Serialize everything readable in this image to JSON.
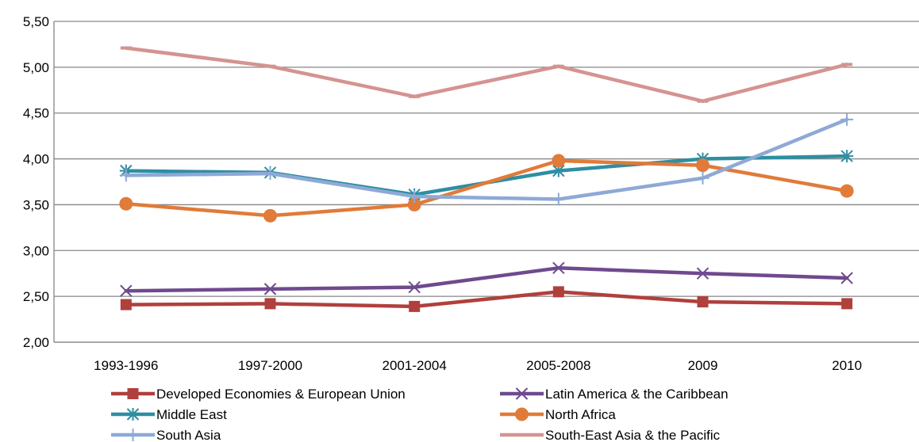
{
  "chart_data": {
    "type": "line",
    "title": "",
    "xlabel": "",
    "ylabel": "",
    "categories": [
      "1993-1996",
      "1997-2000",
      "2001-2004",
      "2005-2008",
      "2009",
      "2010"
    ],
    "ylim": [
      2.0,
      5.5
    ],
    "yticks": [
      "2,00",
      "2,50",
      "3,00",
      "3,50",
      "4,00",
      "4,50",
      "5,00",
      "5,50"
    ],
    "grid": true,
    "legend_position": "bottom",
    "series": [
      {
        "name": "Developed Economies & European Union",
        "color": "#b0403c",
        "marker": "square",
        "values": [
          2.41,
          2.42,
          2.39,
          2.55,
          2.44,
          2.42
        ]
      },
      {
        "name": "Latin America & the Caribbean",
        "color": "#6f4a8e",
        "marker": "x",
        "values": [
          2.56,
          2.58,
          2.6,
          2.81,
          2.75,
          2.7
        ]
      },
      {
        "name": "Middle East",
        "color": "#2e8ea2",
        "marker": "asterisk",
        "values": [
          3.87,
          3.85,
          3.61,
          3.87,
          4.0,
          4.03
        ]
      },
      {
        "name": "North Africa",
        "color": "#e07b39",
        "marker": "circle",
        "values": [
          3.51,
          3.38,
          3.5,
          3.98,
          3.93,
          3.65
        ]
      },
      {
        "name": "South Asia",
        "color": "#8ea9d6",
        "marker": "plus",
        "values": [
          3.82,
          3.84,
          3.59,
          3.56,
          3.79,
          4.43
        ]
      },
      {
        "name": "South-East Asia & the Pacific",
        "color": "#d49391",
        "marker": "dash",
        "values": [
          5.21,
          5.01,
          4.68,
          5.01,
          4.63,
          5.03
        ]
      }
    ]
  }
}
